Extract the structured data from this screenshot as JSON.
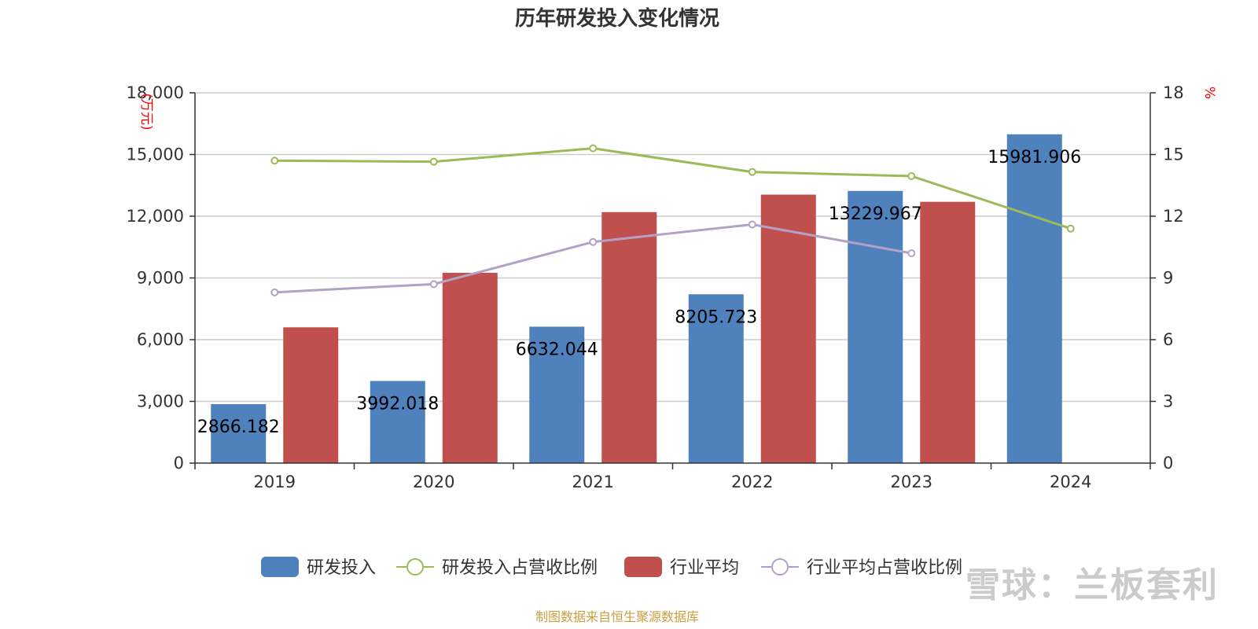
{
  "chart_data": {
    "type": "bar",
    "title": "历年研发投入变化情况",
    "categories": [
      "2019",
      "2020",
      "2021",
      "2022",
      "2023",
      "2024"
    ],
    "ylabel_left": "(万元)",
    "ylabel_right": "%",
    "ylim_left": [
      0,
      18000
    ],
    "ylim_right": [
      0,
      18
    ],
    "yticks_left": [
      "0",
      "3,000",
      "6,000",
      "9,000",
      "12,000",
      "15,000",
      "18,000"
    ],
    "yticks_right": [
      "0",
      "3",
      "6",
      "9",
      "12",
      "15",
      "18"
    ],
    "series": [
      {
        "name": "研发投入",
        "type": "bar",
        "axis": "left",
        "color": "#4f81bd",
        "values": [
          2866.182,
          3992.018,
          6632.044,
          8205.723,
          13229.967,
          15981.906
        ],
        "labels": [
          "2866.182",
          "3992.018",
          "6632.044",
          "8205.723",
          "13229.967",
          "15981.906"
        ]
      },
      {
        "name": "研发投入占营收比例",
        "type": "line",
        "axis": "right",
        "color": "#9bbb59",
        "values": [
          14.7,
          14.65,
          15.3,
          14.15,
          13.95,
          11.4
        ]
      },
      {
        "name": "行业平均",
        "type": "bar",
        "axis": "left",
        "color": "#c0504d",
        "values": [
          6600,
          9250,
          12200,
          13050,
          12700,
          null
        ]
      },
      {
        "name": "行业平均占营收比例",
        "type": "line",
        "axis": "right",
        "color": "#b3a2c7",
        "values": [
          8.3,
          8.7,
          10.75,
          11.6,
          10.2,
          null
        ]
      }
    ],
    "grid": true,
    "legend": "bottom-center"
  },
  "footer": {
    "source": "制图数据来自恒生聚源数据库"
  },
  "watermark": {
    "text": "雪球：兰板套利"
  }
}
